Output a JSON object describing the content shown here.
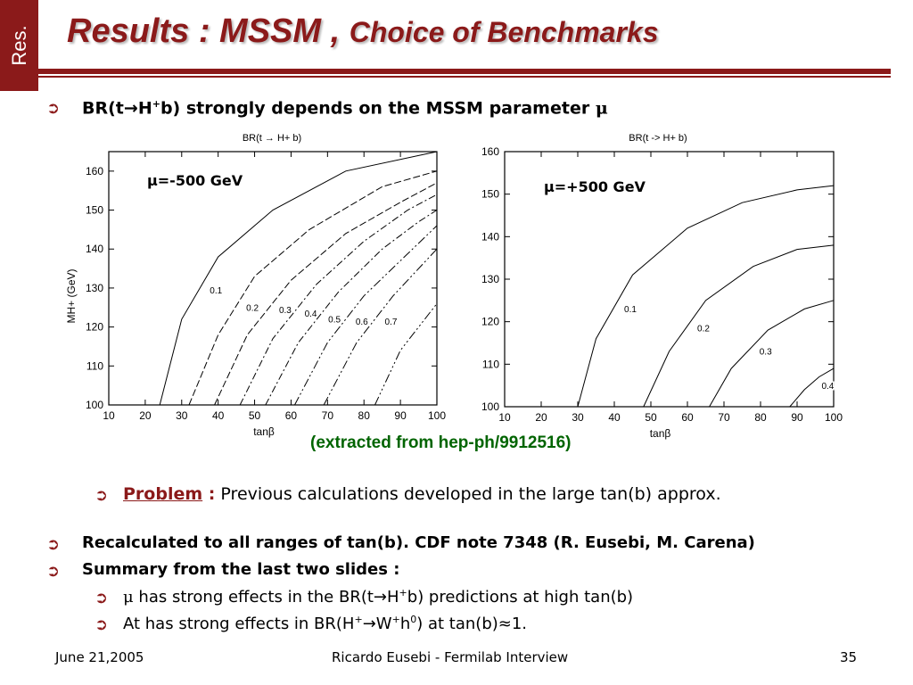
{
  "tab_label": "Res.",
  "title": {
    "main": "Results : MSSM , ",
    "sub": "Choice of Benchmarks"
  },
  "bullet1": {
    "prefix": "BR(t",
    "arrow": "→",
    "mid": "H",
    "sup": "+",
    "suffix": "b) strongly depends on the MSSM parameter ",
    "mu": "μ"
  },
  "plots": [
    {
      "label": "μ=-500 GeV"
    },
    {
      "label": "μ=+500 GeV"
    }
  ],
  "caption": "(extracted from hep-ph/9912516)",
  "problem": {
    "label": "Problem",
    "colon": " :",
    "text": "Previous calculations developed in the large tan(b) approx."
  },
  "bullet2": "Recalculated to all ranges of tan(b). CDF note 7348 (R. Eusebi, M. Carena)",
  "bullet3": "Summary from the last two slides :",
  "sub1": {
    "mu": "μ",
    "a": " has strong effects in the BR(t",
    "arrow": "→",
    "b": "H",
    "sup": "+",
    "c": "b) predictions at high tan(b)"
  },
  "sub2": {
    "a": "At has strong effects in BR(H",
    "sup1": "+",
    "arrow": "→",
    "b": "W",
    "sup2": "+",
    "c": "h",
    "sup3": "0",
    "d": ") at tan(b)≈1."
  },
  "footer": {
    "date": "June 21,2005",
    "author": "Ricardo Eusebi - Fermilab Interview",
    "page": "35"
  },
  "chart_data": [
    {
      "type": "line",
      "title": "BR(t → H+ b)",
      "xlabel": "tanβ",
      "ylabel": "MH+ (GeV)",
      "xlim": [
        10,
        100
      ],
      "ylim": [
        100,
        165
      ],
      "x_ticks": [
        "10",
        "20",
        "30",
        "40",
        "50",
        "60",
        "70",
        "80",
        "90",
        "100"
      ],
      "y_ticks": [
        "100",
        "110",
        "120",
        "130",
        "140",
        "150",
        "160"
      ],
      "annotation": "μ=-500 GeV",
      "series": [
        {
          "name": "0.1",
          "x": [
            24,
            30,
            40,
            55,
            75,
            100
          ],
          "y": [
            100,
            122,
            138,
            150,
            160,
            165
          ]
        },
        {
          "name": "0.2",
          "x": [
            32,
            40,
            50,
            65,
            85,
            100
          ],
          "y": [
            100,
            118,
            133,
            145,
            156,
            160
          ]
        },
        {
          "name": "0.3",
          "x": [
            39,
            48,
            60,
            75,
            90,
            100
          ],
          "y": [
            100,
            118,
            132,
            144,
            152,
            157
          ]
        },
        {
          "name": "0.4",
          "x": [
            46,
            55,
            67,
            80,
            92,
            100
          ],
          "y": [
            100,
            117,
            131,
            142,
            150,
            154
          ]
        },
        {
          "name": "0.5",
          "x": [
            53,
            62,
            73,
            85,
            95,
            100
          ],
          "y": [
            100,
            116,
            129,
            140,
            147,
            150
          ]
        },
        {
          "name": "0.6",
          "x": [
            61,
            70,
            80,
            90,
            100
          ],
          "y": [
            100,
            116,
            128,
            137,
            146
          ]
        },
        {
          "name": "0.7",
          "x": [
            69,
            78,
            88,
            100
          ],
          "y": [
            100,
            116,
            128,
            140
          ]
        },
        {
          "name": "",
          "x": [
            83,
            90,
            100
          ],
          "y": [
            100,
            114,
            126
          ]
        }
      ]
    },
    {
      "type": "line",
      "title": "BR(t -> H+ b)",
      "xlabel": "tanβ",
      "ylabel": "",
      "xlim": [
        10,
        100
      ],
      "ylim": [
        100,
        160
      ],
      "x_ticks": [
        "10",
        "20",
        "30",
        "40",
        "50",
        "60",
        "70",
        "80",
        "90",
        "100"
      ],
      "y_ticks": [
        "100",
        "110",
        "120",
        "130",
        "140",
        "150",
        "160"
      ],
      "annotation": "μ=+500 GeV",
      "series": [
        {
          "name": "0.1",
          "x": [
            30,
            35,
            45,
            60,
            75,
            90,
            100
          ],
          "y": [
            100,
            116,
            131,
            142,
            148,
            151,
            152
          ]
        },
        {
          "name": "0.2",
          "x": [
            48,
            55,
            65,
            78,
            90,
            100
          ],
          "y": [
            100,
            113,
            125,
            133,
            137,
            138
          ]
        },
        {
          "name": "0.3",
          "x": [
            66,
            72,
            82,
            92,
            100
          ],
          "y": [
            100,
            109,
            118,
            123,
            125
          ]
        },
        {
          "name": "0.4",
          "x": [
            88,
            92,
            96,
            100
          ],
          "y": [
            100,
            104,
            107,
            109
          ]
        }
      ]
    }
  ]
}
